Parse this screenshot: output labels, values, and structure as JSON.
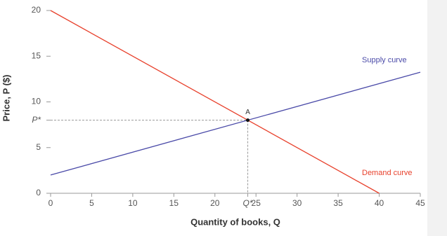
{
  "chart_data": {
    "type": "line",
    "xlabel": "Quantity of books, Q",
    "ylabel": "Price, P ($)",
    "xlim": [
      0,
      45
    ],
    "ylim": [
      0,
      20
    ],
    "xticks": [
      0,
      5,
      10,
      15,
      20,
      {
        "value": 24,
        "label": "Q*"
      },
      25,
      30,
      35,
      40,
      45
    ],
    "yticks": [
      0,
      5,
      {
        "value": 8,
        "label": "P*"
      },
      10,
      15,
      20
    ],
    "series": [
      {
        "name": "Supply curve",
        "color": "#4a4aa8",
        "x": [
          0,
          45
        ],
        "values": [
          2,
          13.25
        ]
      },
      {
        "name": "Demand curve",
        "color": "#e8412c",
        "x": [
          0,
          40
        ],
        "values": [
          20,
          0
        ]
      }
    ],
    "points": [
      {
        "name": "A",
        "x": 24,
        "y": 8
      }
    ]
  }
}
